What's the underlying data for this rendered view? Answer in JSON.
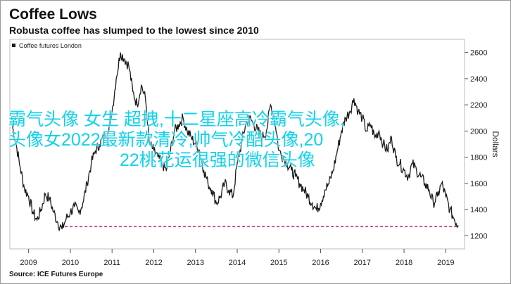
{
  "title": "Coffee Lows",
  "subtitle": "Robusta coffee has slumped to the lowest since 2010",
  "source": "Source: ICE Futures Europe",
  "overlay_text": {
    "line1": "霸气头像 女生 超拽,十二星座高冷霸气头像,",
    "line2": "头像女2022最新款清冷,帅气冷酷头像,20",
    "line3": "22桃花运很强的微信头像"
  },
  "colors": {
    "line": "#1a1a1a",
    "dashed": "#c0357f",
    "overlay": "#12d2ea"
  },
  "chart_data": {
    "type": "line",
    "title": "Coffee Lows",
    "subtitle": "Robusta coffee has slumped to the lowest since 2010",
    "legend": {
      "label": "Coffee futures London",
      "placement": "top-left"
    },
    "ylabel": "Dollars",
    "ylim": [
      1100,
      2700
    ],
    "yticks": [
      1200,
      1400,
      1600,
      1800,
      2000,
      2200,
      2400,
      2600
    ],
    "xlim": [
      2008.55,
      2019.45
    ],
    "xticks": [
      "2009",
      "2010",
      "2011",
      "2012",
      "2013",
      "2014",
      "2015",
      "2016",
      "2017",
      "2018",
      "2019"
    ],
    "reference_line": {
      "value": 1270,
      "x_from": 2009.75,
      "x_to": 2019.3,
      "style": "dashed"
    },
    "series": [
      {
        "name": "Coffee futures London",
        "x": [
          2008.6,
          2008.7,
          2008.8,
          2008.9,
          2009.0,
          2009.1,
          2009.2,
          2009.3,
          2009.4,
          2009.5,
          2009.6,
          2009.7,
          2009.8,
          2009.9,
          2010.0,
          2010.1,
          2010.2,
          2010.3,
          2010.4,
          2010.5,
          2010.6,
          2010.7,
          2010.8,
          2010.9,
          2011.0,
          2011.1,
          2011.2,
          2011.3,
          2011.4,
          2011.5,
          2011.6,
          2011.7,
          2011.8,
          2011.9,
          2012.0,
          2012.1,
          2012.2,
          2012.3,
          2012.4,
          2012.5,
          2012.6,
          2012.7,
          2012.8,
          2012.9,
          2013.0,
          2013.1,
          2013.2,
          2013.3,
          2013.4,
          2013.5,
          2013.6,
          2013.7,
          2013.8,
          2013.9,
          2014.0,
          2014.1,
          2014.2,
          2014.3,
          2014.4,
          2014.5,
          2014.6,
          2014.7,
          2014.8,
          2014.9,
          2015.0,
          2015.1,
          2015.2,
          2015.3,
          2015.4,
          2015.5,
          2015.6,
          2015.7,
          2015.8,
          2015.9,
          2016.0,
          2016.1,
          2016.2,
          2016.3,
          2016.4,
          2016.5,
          2016.6,
          2016.7,
          2016.8,
          2016.9,
          2017.0,
          2017.1,
          2017.2,
          2017.3,
          2017.4,
          2017.5,
          2017.6,
          2017.7,
          2017.8,
          2017.9,
          2018.0,
          2018.1,
          2018.2,
          2018.3,
          2018.4,
          2018.5,
          2018.6,
          2018.7,
          2018.8,
          2018.9,
          2019.0,
          2019.1,
          2019.2,
          2019.3
        ],
        "y": [
          2050,
          1900,
          1720,
          1560,
          1500,
          1380,
          1320,
          1400,
          1520,
          1480,
          1380,
          1300,
          1250,
          1330,
          1380,
          1420,
          1380,
          1450,
          1600,
          1750,
          1850,
          1900,
          1950,
          2000,
          2150,
          2400,
          2600,
          2550,
          2500,
          2300,
          2200,
          2350,
          2250,
          1900,
          1850,
          1800,
          1750,
          1700,
          1850,
          2000,
          2050,
          2100,
          2000,
          1950,
          1900,
          1850,
          1700,
          1600,
          1550,
          1450,
          1500,
          1600,
          1550,
          1500,
          1750,
          1900,
          2050,
          2100,
          2050,
          2000,
          1950,
          2000,
          2200,
          2100,
          1850,
          1800,
          1750,
          1700,
          1650,
          1600,
          1550,
          1500,
          1450,
          1400,
          1450,
          1550,
          1600,
          1700,
          1850,
          2000,
          2100,
          2150,
          2250,
          2150,
          2100,
          2000,
          2050,
          1950,
          2000,
          1900,
          1850,
          1950,
          1800,
          1750,
          1700,
          1650,
          1750,
          1700,
          1650,
          1600,
          1550,
          1450,
          1500,
          1600,
          1500,
          1400,
          1330,
          1280
        ]
      }
    ]
  }
}
